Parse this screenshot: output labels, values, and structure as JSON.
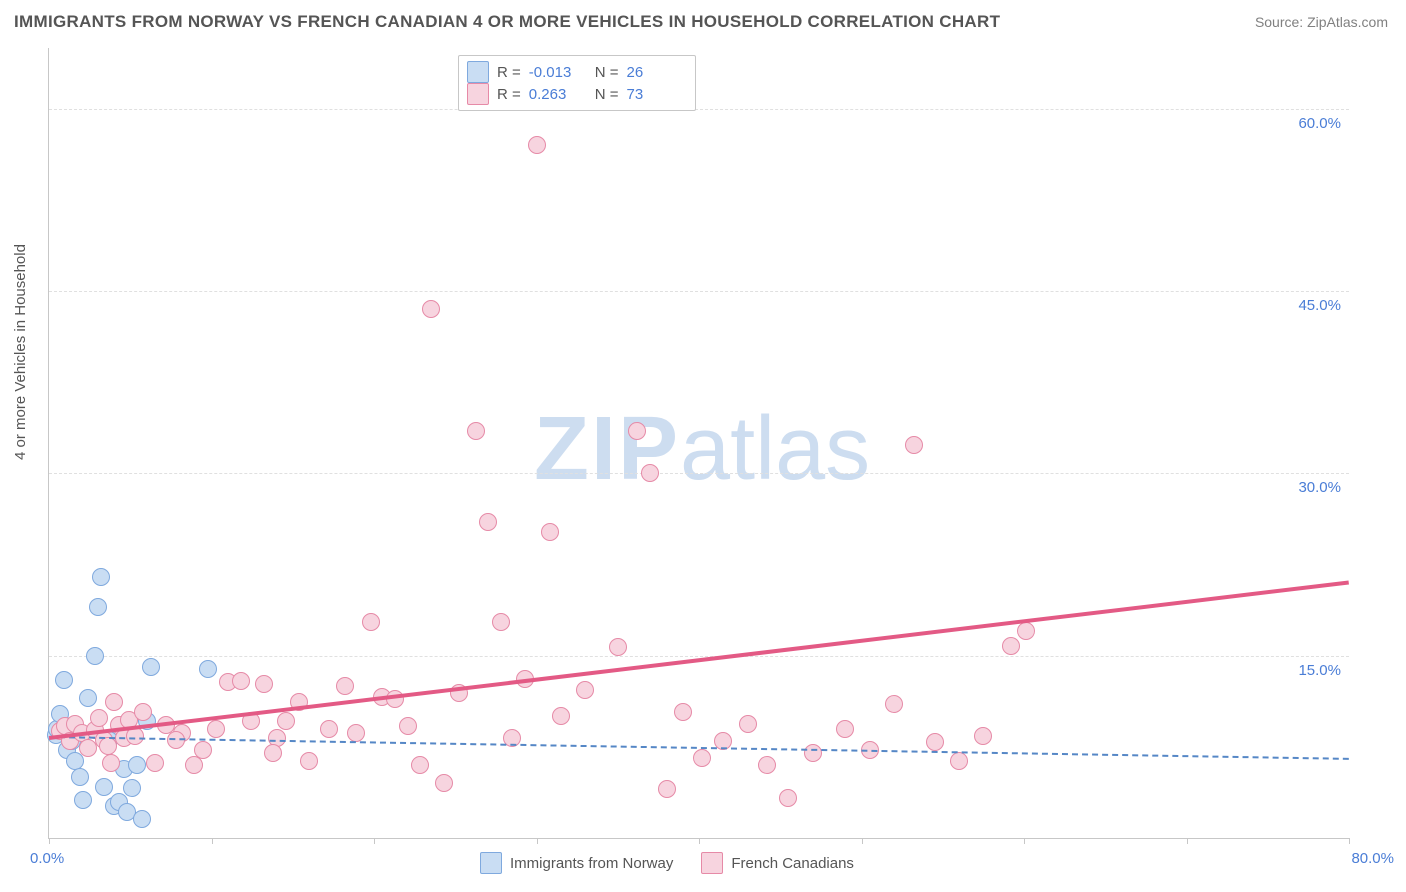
{
  "title": "IMMIGRANTS FROM NORWAY VS FRENCH CANADIAN 4 OR MORE VEHICLES IN HOUSEHOLD CORRELATION CHART",
  "source_label": "Source: ZipAtlas.com",
  "ylabel": "4 or more Vehicles in Household",
  "watermark": {
    "zip": "ZIP",
    "atlas": "atlas",
    "color": "#cdddf0"
  },
  "chart": {
    "type": "scatter",
    "background_color": "#ffffff",
    "grid_color": "#e0e0e0",
    "axis_color": "#c7c7c7",
    "xlim": [
      0,
      80
    ],
    "ylim": [
      0,
      65
    ],
    "x_ticks": [
      0,
      10,
      20,
      30,
      40,
      50,
      60,
      70,
      80
    ],
    "y_gridlines": [
      15,
      30,
      45,
      60
    ],
    "y_tick_labels": [
      "15.0%",
      "30.0%",
      "45.0%",
      "60.0%"
    ],
    "x_origin_label": "0.0%",
    "x_max_label": "80.0%",
    "label_color": "#4a7dd6",
    "label_fontsize": 15,
    "marker_radius": 9,
    "marker_border_width": 1.5,
    "series": [
      {
        "name": "Immigrants from Norway",
        "fill": "#c9ddf3",
        "stroke": "#7fa9de",
        "R": "-0.013",
        "N": "26",
        "trend": {
          "style": "dashed",
          "color": "#5587c6",
          "y_at_x0": 8.4,
          "y_at_xmax": 6.6
        },
        "points": [
          [
            0.4,
            8.5
          ],
          [
            0.5,
            9.0
          ],
          [
            0.7,
            10.2
          ],
          [
            0.9,
            13.0
          ],
          [
            1.1,
            7.2
          ],
          [
            1.4,
            8.0
          ],
          [
            1.6,
            6.3
          ],
          [
            1.9,
            5.0
          ],
          [
            2.1,
            3.1
          ],
          [
            2.4,
            11.5
          ],
          [
            2.8,
            15.0
          ],
          [
            3.0,
            19.0
          ],
          [
            3.2,
            21.5
          ],
          [
            3.4,
            4.2
          ],
          [
            3.7,
            8.1
          ],
          [
            4.0,
            2.6
          ],
          [
            4.3,
            3.0
          ],
          [
            4.6,
            5.7
          ],
          [
            4.8,
            2.1
          ],
          [
            5.1,
            4.1
          ],
          [
            5.4,
            6.0
          ],
          [
            5.7,
            1.6
          ],
          [
            6.0,
            9.6
          ],
          [
            6.3,
            14.1
          ],
          [
            9.8,
            13.9
          ],
          [
            4.9,
            8.6
          ]
        ]
      },
      {
        "name": "French Canadians",
        "fill": "#f7d4df",
        "stroke": "#e68aa7",
        "R": "0.263",
        "N": "73",
        "trend": {
          "style": "solid",
          "color": "#e35a85",
          "y_at_x0": 8.4,
          "y_at_xmax": 21.2
        },
        "points": [
          [
            0.7,
            8.8
          ],
          [
            1.0,
            9.2
          ],
          [
            1.3,
            8.0
          ],
          [
            1.6,
            9.4
          ],
          [
            2.0,
            8.6
          ],
          [
            2.4,
            7.4
          ],
          [
            2.8,
            8.9
          ],
          [
            3.1,
            9.9
          ],
          [
            3.4,
            8.1
          ],
          [
            3.8,
            6.2
          ],
          [
            4.0,
            11.2
          ],
          [
            4.3,
            9.3
          ],
          [
            4.6,
            8.2
          ],
          [
            4.9,
            9.7
          ],
          [
            5.3,
            8.4
          ],
          [
            6.5,
            6.2
          ],
          [
            7.2,
            9.3
          ],
          [
            8.2,
            8.6
          ],
          [
            8.9,
            6.0
          ],
          [
            9.5,
            7.2
          ],
          [
            10.3,
            9.0
          ],
          [
            11.0,
            12.8
          ],
          [
            11.8,
            12.9
          ],
          [
            12.4,
            9.6
          ],
          [
            13.2,
            12.7
          ],
          [
            14.0,
            8.2
          ],
          [
            14.6,
            9.6
          ],
          [
            15.4,
            11.2
          ],
          [
            16.0,
            6.3
          ],
          [
            17.2,
            9.0
          ],
          [
            18.2,
            12.5
          ],
          [
            18.9,
            8.6
          ],
          [
            19.8,
            17.8
          ],
          [
            20.5,
            11.6
          ],
          [
            21.3,
            11.4
          ],
          [
            22.1,
            9.2
          ],
          [
            22.8,
            6.0
          ],
          [
            23.5,
            43.5
          ],
          [
            24.3,
            4.5
          ],
          [
            25.2,
            11.9
          ],
          [
            26.3,
            33.5
          ],
          [
            27.0,
            26.0
          ],
          [
            27.8,
            17.8
          ],
          [
            28.5,
            8.2
          ],
          [
            29.3,
            13.1
          ],
          [
            30.0,
            57.0
          ],
          [
            30.8,
            25.2
          ],
          [
            31.5,
            10.0
          ],
          [
            33.0,
            12.2
          ],
          [
            35.0,
            15.7
          ],
          [
            36.2,
            33.5
          ],
          [
            37.0,
            30.0
          ],
          [
            38.0,
            4.0
          ],
          [
            39.0,
            10.4
          ],
          [
            40.2,
            6.6
          ],
          [
            41.5,
            8.0
          ],
          [
            43.0,
            9.4
          ],
          [
            44.2,
            6.0
          ],
          [
            45.5,
            3.3
          ],
          [
            47.0,
            7.0
          ],
          [
            49.0,
            9.0
          ],
          [
            50.5,
            7.2
          ],
          [
            52.0,
            11.0
          ],
          [
            53.2,
            32.3
          ],
          [
            54.5,
            7.9
          ],
          [
            56.0,
            6.3
          ],
          [
            57.5,
            8.4
          ],
          [
            59.2,
            15.8
          ],
          [
            60.1,
            17.0
          ],
          [
            3.6,
            7.6
          ],
          [
            5.8,
            10.4
          ],
          [
            7.8,
            8.1
          ],
          [
            13.8,
            7.0
          ]
        ]
      }
    ]
  },
  "top_legend": {
    "rows": [
      {
        "swatch_fill": "#c9ddf3",
        "swatch_stroke": "#7fa9de",
        "r_label": "R =",
        "r_value": "-0.013",
        "n_label": "N =",
        "n_value": "26"
      },
      {
        "swatch_fill": "#f7d4df",
        "swatch_stroke": "#e68aa7",
        "r_label": "R =",
        "r_value": " 0.263",
        "n_label": "N =",
        "n_value": "73"
      }
    ]
  },
  "bottom_legend": {
    "items": [
      {
        "swatch_fill": "#c9ddf3",
        "swatch_stroke": "#7fa9de",
        "label": "Immigrants from Norway"
      },
      {
        "swatch_fill": "#f7d4df",
        "swatch_stroke": "#e68aa7",
        "label": "French Canadians"
      }
    ]
  }
}
